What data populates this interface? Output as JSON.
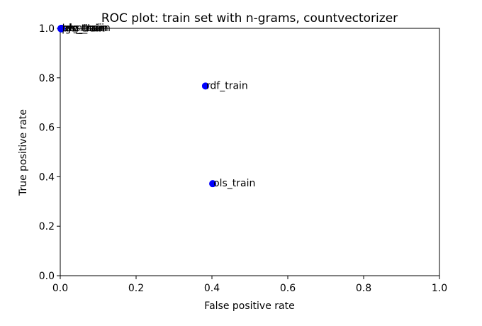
{
  "chart_data": {
    "type": "scatter",
    "title": "ROC plot: train set with n-grams, countvectorizer",
    "xlabel": "False positive rate",
    "ylabel": "True positive rate",
    "xlim": [
      0.0,
      1.0
    ],
    "ylim": [
      0.0,
      1.0
    ],
    "xticks": [
      "0.0",
      "0.2",
      "0.4",
      "0.6",
      "0.8",
      "1.0"
    ],
    "yticks": [
      "0.0",
      "0.2",
      "0.4",
      "0.6",
      "0.8",
      "1.0"
    ],
    "grid": false,
    "marker_color": "#0000ff",
    "points": [
      {
        "label": "rdf_train",
        "x": 0.383,
        "y": 0.767
      },
      {
        "label": "ols_train",
        "x": 0.402,
        "y": 0.372
      },
      {
        "label": "svm_train",
        "x": 0.002,
        "y": 1.0
      },
      {
        "label": "lgs_train",
        "x": 0.003,
        "y": 0.999
      },
      {
        "label": "nbs_train",
        "x": 0.004,
        "y": 1.0
      },
      {
        "label": "prc_train",
        "x": 0.002,
        "y": 0.998
      },
      {
        "label": "rdg_train",
        "x": 0.003,
        "y": 1.0
      }
    ]
  }
}
